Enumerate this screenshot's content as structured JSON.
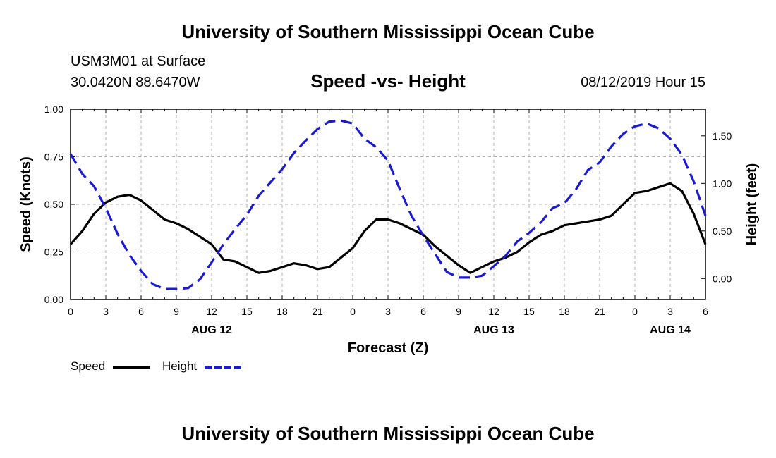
{
  "header": {
    "title": "University of Southern Mississippi Ocean Cube",
    "station": "USM3M01 at Surface",
    "coords": "30.0420N 88.6470W",
    "chart_title": "Speed -vs- Height",
    "datetime": "08/12/2019 Hour 15"
  },
  "footer": {
    "title": "University of Southern Mississippi Ocean Cube"
  },
  "legend": {
    "speed_label": "Speed",
    "height_label": "Height",
    "speed_color": "#000000",
    "height_color": "#1a1ad6"
  },
  "chart_data": {
    "type": "line",
    "title": "Speed -vs- Height",
    "xlabel": "Forecast (Z)",
    "ylabel": "Speed (Knots)",
    "y2label": "Height (feet)",
    "x_range_hours": [
      0,
      54
    ],
    "ylim": [
      0,
      1.0
    ],
    "y2lim": [
      -0.22,
      1.78
    ],
    "y_ticks": [
      "0.00",
      "0.25",
      "0.50",
      "0.75",
      "1.00"
    ],
    "y2_ticks": [
      "0.00",
      "0.50",
      "1.00",
      "1.50"
    ],
    "x_tick_labels": [
      "0",
      "3",
      "6",
      "9",
      "12",
      "15",
      "18",
      "21",
      "0",
      "3",
      "6",
      "9",
      "12",
      "15",
      "18",
      "21",
      "0",
      "3",
      "6"
    ],
    "date_labels": [
      {
        "hour": 12,
        "label": "AUG 12"
      },
      {
        "hour": 36,
        "label": "AUG 13"
      },
      {
        "hour": 51,
        "label": "AUG 14"
      }
    ],
    "series": [
      {
        "name": "Speed",
        "axis": "left",
        "color": "#000000",
        "style": "solid",
        "hours": [
          0,
          1,
          2,
          3,
          4,
          5,
          6,
          7,
          8,
          9,
          10,
          11,
          12,
          13,
          14,
          15,
          16,
          17,
          18,
          19,
          20,
          21,
          22,
          23,
          24,
          25,
          26,
          27,
          28,
          29,
          30,
          31,
          32,
          33,
          34,
          35,
          36,
          37,
          38,
          39,
          40,
          41,
          42,
          43,
          44,
          45,
          46,
          47,
          48,
          49,
          50,
          51,
          52,
          53,
          54
        ],
        "values": [
          0.29,
          0.36,
          0.45,
          0.51,
          0.54,
          0.55,
          0.52,
          0.47,
          0.42,
          0.4,
          0.37,
          0.33,
          0.29,
          0.21,
          0.2,
          0.17,
          0.14,
          0.15,
          0.17,
          0.19,
          0.18,
          0.16,
          0.17,
          0.22,
          0.27,
          0.36,
          0.42,
          0.42,
          0.4,
          0.37,
          0.34,
          0.28,
          0.23,
          0.18,
          0.14,
          0.17,
          0.2,
          0.22,
          0.25,
          0.3,
          0.34,
          0.36,
          0.39,
          0.4,
          0.41,
          0.42,
          0.44,
          0.5,
          0.56,
          0.57,
          0.59,
          0.61,
          0.57,
          0.45,
          0.29
        ]
      },
      {
        "name": "Height",
        "axis": "right",
        "color": "#1a1ad6",
        "style": "dashed",
        "hours": [
          0,
          1,
          2,
          3,
          4,
          5,
          6,
          7,
          8,
          9,
          10,
          11,
          12,
          13,
          14,
          15,
          16,
          17,
          18,
          19,
          20,
          21,
          22,
          23,
          24,
          25,
          26,
          27,
          28,
          29,
          30,
          31,
          32,
          33,
          34,
          35,
          36,
          37,
          38,
          39,
          40,
          41,
          42,
          43,
          44,
          45,
          46,
          47,
          48,
          49,
          50,
          51,
          52,
          53,
          54
        ],
        "values": [
          1.31,
          1.1,
          0.97,
          0.74,
          0.47,
          0.25,
          0.08,
          -0.06,
          -0.11,
          -0.11,
          -0.1,
          -0.01,
          0.17,
          0.36,
          0.52,
          0.67,
          0.87,
          1.01,
          1.15,
          1.32,
          1.45,
          1.57,
          1.65,
          1.66,
          1.63,
          1.47,
          1.38,
          1.24,
          0.94,
          0.66,
          0.45,
          0.26,
          0.07,
          0.01,
          0.01,
          0.03,
          0.13,
          0.24,
          0.39,
          0.48,
          0.59,
          0.74,
          0.79,
          0.94,
          1.14,
          1.22,
          1.39,
          1.52,
          1.6,
          1.63,
          1.58,
          1.47,
          1.3,
          1.02,
          0.66
        ]
      }
    ]
  }
}
